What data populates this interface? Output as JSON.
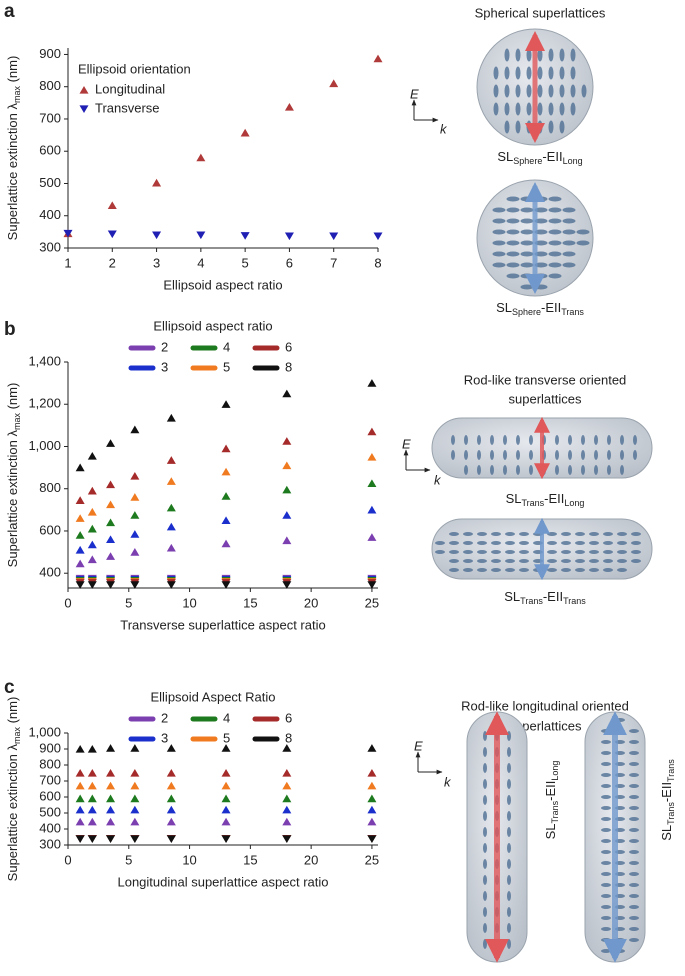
{
  "panel_labels": [
    "a",
    "b",
    "c"
  ],
  "chart_data": [
    {
      "type": "scatter",
      "xlabel": "Ellipsoid aspect ratio",
      "ylabel": {
        "text": "Superlattice extinction λ",
        "sub": "max",
        "end": " (nm)"
      },
      "x": [
        1,
        2,
        3,
        4,
        5,
        6,
        7,
        8
      ],
      "xlim": [
        1,
        8
      ],
      "xticks": [
        1,
        2,
        3,
        4,
        5,
        6,
        7,
        8
      ],
      "ylim": [
        300,
        920
      ],
      "yticks": [
        300,
        400,
        500,
        600,
        700,
        800,
        900
      ],
      "legend": "upper-left",
      "legend_title": "Ellipsoid orientation",
      "series": [
        {
          "name": "Longitudinal",
          "color": "#b03a3a",
          "marker": "triangle-up",
          "values": [
            345,
            432,
            502,
            580,
            657,
            737,
            810,
            887
          ]
        },
        {
          "name": "Transverse",
          "color": "#1f1fb4",
          "marker": "triangle-down",
          "values": [
            345,
            343,
            340,
            340,
            338,
            337,
            337,
            337
          ]
        }
      ]
    },
    {
      "type": "scatter",
      "xlabel": "Transverse superlattice aspect ratio",
      "ylabel": {
        "text": "Superlattice extinction λ",
        "sub": "max",
        "end": " (nm)"
      },
      "x": [
        1,
        2,
        3.5,
        5.5,
        8.5,
        13,
        18,
        25
      ],
      "xlim": [
        0,
        25.5
      ],
      "xticks": [
        0,
        5,
        10,
        15,
        20,
        25
      ],
      "ylim": [
        330,
        1400
      ],
      "yticks": [
        400,
        600,
        800,
        {
          "value": 1000,
          "label": "1,000"
        },
        {
          "value": 1200,
          "label": "1,200"
        },
        {
          "value": 1400,
          "label": "1,400"
        }
      ],
      "legend": "above",
      "legend_title": "Ellipsoid aspect ratio",
      "series": [
        {
          "name": "2",
          "color": "#7b3fb0",
          "marker": "triangle-up",
          "values": [
            445,
            465,
            480,
            500,
            520,
            540,
            555,
            570
          ],
          "lower_marker": "triangle-down",
          "lower_values": [
            375,
            375,
            375,
            375,
            375,
            375,
            375,
            375
          ]
        },
        {
          "name": "3",
          "color": "#1a2fcc",
          "marker": "triangle-up",
          "values": [
            510,
            535,
            560,
            585,
            620,
            650,
            675,
            700
          ],
          "lower_marker": "triangle-down",
          "lower_values": [
            370,
            370,
            370,
            370,
            370,
            370,
            370,
            370
          ]
        },
        {
          "name": "4",
          "color": "#1e7a1e",
          "marker": "triangle-up",
          "values": [
            580,
            610,
            640,
            675,
            710,
            765,
            795,
            825
          ],
          "lower_marker": "triangle-down",
          "lower_values": [
            365,
            365,
            365,
            365,
            365,
            365,
            365,
            365
          ]
        },
        {
          "name": "5",
          "color": "#f07a20",
          "marker": "triangle-up",
          "values": [
            660,
            690,
            725,
            760,
            835,
            880,
            910,
            950
          ],
          "lower_marker": "triangle-down",
          "lower_values": [
            360,
            360,
            360,
            360,
            360,
            360,
            360,
            360
          ]
        },
        {
          "name": "6",
          "color": "#a52a2a",
          "marker": "triangle-up",
          "values": [
            745,
            790,
            820,
            860,
            935,
            990,
            1025,
            1070
          ],
          "lower_marker": "triangle-down",
          "lower_values": [
            355,
            355,
            355,
            355,
            355,
            355,
            355,
            355
          ]
        },
        {
          "name": "8",
          "color": "#111111",
          "marker": "triangle-up",
          "values": [
            900,
            955,
            1015,
            1080,
            1135,
            1200,
            1250,
            1300
          ],
          "lower_marker": "triangle-down",
          "lower_values": [
            345,
            345,
            345,
            345,
            345,
            345,
            345,
            345
          ]
        }
      ]
    },
    {
      "type": "scatter",
      "xlabel": "Longitudinal superlattice aspect ratio",
      "ylabel": {
        "text": "Superlattice extinction λ",
        "sub": "max",
        "end": " (nm)"
      },
      "x": [
        1,
        2,
        3.5,
        5.5,
        8.5,
        13,
        18,
        25
      ],
      "xlim": [
        0,
        25.5
      ],
      "xticks": [
        0,
        5,
        10,
        15,
        20,
        25
      ],
      "ylim": [
        300,
        1000
      ],
      "yticks": [
        300,
        400,
        500,
        600,
        700,
        800,
        900,
        {
          "value": 1000,
          "label": "1,000"
        }
      ],
      "legend": "above",
      "legend_title": "Ellipsoid Aspect Ratio",
      "series": [
        {
          "name": "2",
          "color": "#7b3fb0",
          "marker": "triangle-up",
          "values": [
            445,
            445,
            445,
            445,
            445,
            445,
            445,
            445
          ],
          "lower_marker": "triangle-down",
          "lower_values": [
            340,
            340,
            340,
            340,
            340,
            340,
            340,
            340
          ]
        },
        {
          "name": "3",
          "color": "#1a2fcc",
          "marker": "triangle-up",
          "values": [
            520,
            520,
            520,
            520,
            520,
            520,
            520,
            520
          ],
          "lower_marker": "triangle-down",
          "lower_values": [
            340,
            340,
            340,
            340,
            340,
            340,
            340,
            340
          ]
        },
        {
          "name": "4",
          "color": "#1e7a1e",
          "marker": "triangle-up",
          "values": [
            590,
            590,
            590,
            590,
            590,
            590,
            590,
            590
          ],
          "lower_marker": "triangle-down",
          "lower_values": [
            340,
            340,
            340,
            340,
            340,
            340,
            340,
            340
          ]
        },
        {
          "name": "5",
          "color": "#f07a20",
          "marker": "triangle-up",
          "values": [
            670,
            670,
            670,
            670,
            670,
            670,
            670,
            670
          ],
          "lower_marker": "triangle-down",
          "lower_values": [
            340,
            340,
            340,
            340,
            340,
            340,
            340,
            340
          ]
        },
        {
          "name": "6",
          "color": "#a52a2a",
          "marker": "triangle-up",
          "values": [
            750,
            750,
            750,
            750,
            750,
            750,
            750,
            750
          ],
          "lower_marker": "triangle-down",
          "lower_values": [
            340,
            340,
            340,
            340,
            340,
            340,
            340,
            340
          ]
        },
        {
          "name": "8",
          "color": "#111111",
          "marker": "triangle-up",
          "values": [
            900,
            900,
            905,
            905,
            905,
            905,
            905,
            905
          ],
          "lower_marker": "triangle-down",
          "lower_values": [
            338,
            338,
            338,
            338,
            338,
            338,
            338,
            338
          ]
        }
      ]
    }
  ],
  "diagrams": [
    {
      "title_lines": [
        "Spherical superlattices"
      ],
      "axes": {
        "e": "E",
        "k": "k"
      },
      "labels": [
        {
          "base": "SL",
          "sub1": "Sphere",
          "mid": "-EII",
          "sub2": "Long"
        },
        {
          "base": "SL",
          "sub1": "Sphere",
          "mid": "-EII",
          "sub2": "Trans"
        }
      ]
    },
    {
      "title_lines": [
        "Rod-like transverse oriented",
        "superlattices"
      ],
      "axes": {
        "e": "E",
        "k": "k"
      },
      "labels": [
        {
          "base": "SL",
          "sub1": "Trans",
          "mid": "-EII",
          "sub2": "Long"
        },
        {
          "base": "SL",
          "sub1": "Trans",
          "mid": "-EII",
          "sub2": "Trans"
        }
      ]
    },
    {
      "title_lines": [
        "Rod-like longitudinal oriented",
        "superlattices"
      ],
      "axes": {
        "e": "E",
        "k": "k"
      },
      "labels": [
        {
          "base": "SL",
          "sub1": "Trans",
          "mid": "-EII",
          "sub2": "Long"
        },
        {
          "base": "SL",
          "sub1": "Trans",
          "mid": "-EII",
          "sub2": "Trans"
        }
      ]
    }
  ]
}
